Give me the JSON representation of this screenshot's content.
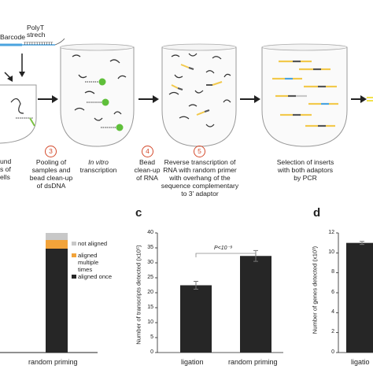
{
  "top": {
    "barcode_label": "Barcode",
    "polyt_label_line1": "PolyT",
    "polyt_label_line2": "strech",
    "polyt_bases": "TTTTTTTTTTTT",
    "step1_text": [
      "und",
      "s of",
      "ells"
    ],
    "step3": {
      "number": "3",
      "text": [
        "Pooling of",
        "samples and",
        "bead clean-up",
        "of dsDNA"
      ]
    },
    "step_ivt": {
      "italic": "In vitro",
      "text": "transcription"
    },
    "step4": {
      "number": "4",
      "text": [
        "Bead",
        "clean-up",
        "of RNA"
      ]
    },
    "step5": {
      "number": "5",
      "text": [
        "Reverse transcription of",
        "RNA with random primer",
        "with overhang of the",
        "sequence complementary",
        "to 3' adaptor"
      ]
    },
    "step_pcr": {
      "text": [
        "Selection of inserts",
        "with both adaptors",
        "by PCR"
      ]
    }
  },
  "panel_b": {
    "legend": [
      "not aligned",
      "aligned multiple times",
      "aligned once"
    ],
    "legend_colors": [
      "#c8c8c8",
      "#f2a33a",
      "#262626"
    ],
    "x_label": "random priming",
    "chart_data": {
      "type": "bar",
      "categories": [
        "random priming"
      ],
      "series": [
        {
          "name": "aligned once",
          "values": [
            0.93
          ]
        },
        {
          "name": "aligned multiple times",
          "values": [
            0.03
          ]
        },
        {
          "name": "not aligned",
          "values": [
            0.04
          ]
        }
      ]
    }
  },
  "panel_c": {
    "label": "c",
    "ylabel": "Number of transcripts detected (x10⁶)",
    "pvalue": "P<10⁻⁹",
    "chart_data": {
      "type": "bar",
      "categories": [
        "ligation",
        "random priming"
      ],
      "values": [
        22.5,
        32.3
      ],
      "errors": [
        1.3,
        1.8
      ],
      "ylim": [
        0,
        40
      ],
      "yticks": [
        "0",
        "5",
        "10",
        "15",
        "20",
        "25",
        "30",
        "35",
        "40"
      ]
    }
  },
  "panel_d": {
    "label": "d",
    "ylabel": "Number of genes detected (x10³)",
    "xtick_partial": "ligatio",
    "chart_data": {
      "type": "bar",
      "categories": [
        "ligation"
      ],
      "values": [
        11.0
      ],
      "errors": [
        0.15
      ],
      "ylim": [
        0,
        12
      ],
      "yticks": [
        "0",
        "2",
        "4",
        "6",
        "8",
        "10",
        "12"
      ]
    }
  }
}
